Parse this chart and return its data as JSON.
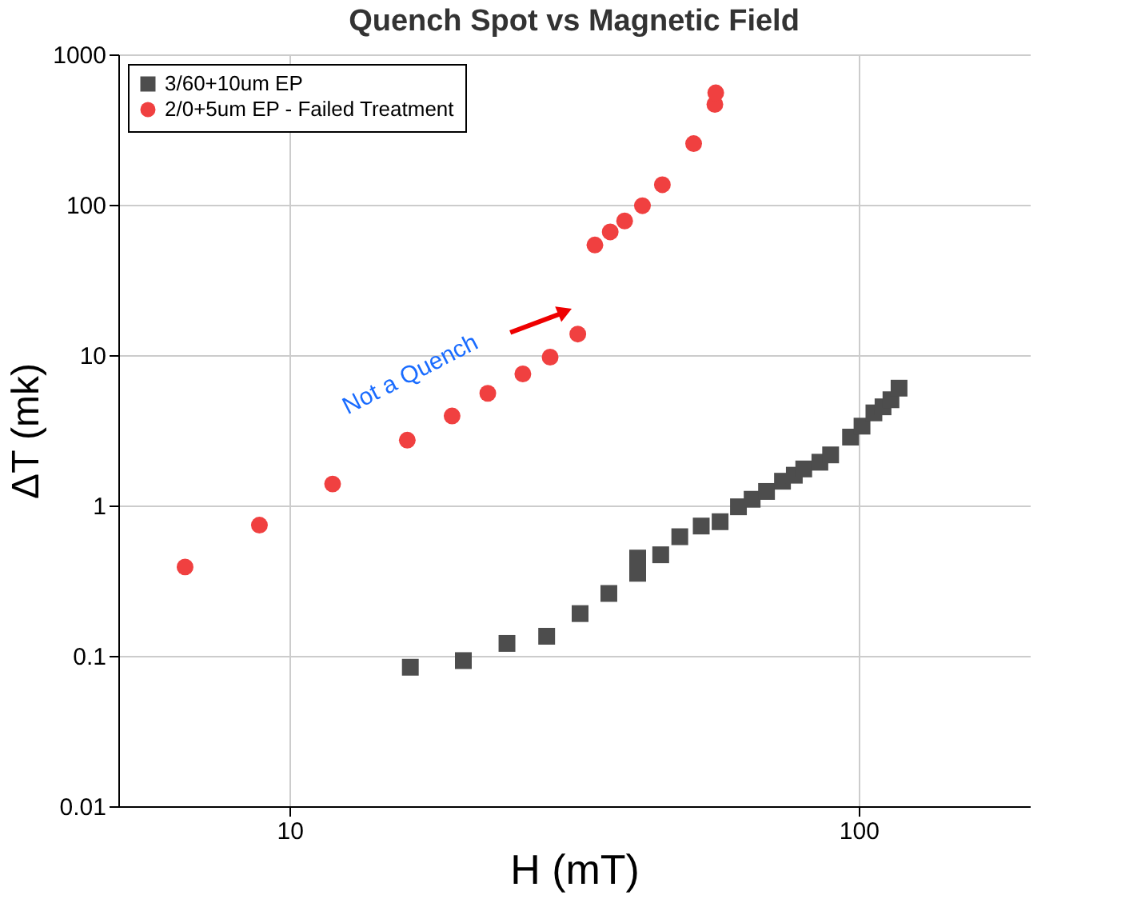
{
  "chart_data": {
    "type": "scatter",
    "title": "Quench Spot vs Magnetic Field",
    "xlabel": "H (mT)",
    "ylabel": "ΔT (mk)",
    "log": "xy",
    "grid": true,
    "legend": "top left",
    "xlim": [
      5,
      200
    ],
    "xticks": [
      10,
      100
    ],
    "ylim": [
      0.01,
      1000
    ],
    "yticks": [
      0.01,
      0.1,
      1,
      10,
      100,
      1000
    ],
    "annotations": [
      "Not a Quench"
    ],
    "series": [
      {
        "name": "3/60+10um EP",
        "color": "#4d4d4d",
        "marker": "square",
        "x": [
          16.3,
          20.2,
          24.1,
          28.3,
          32.4,
          36.4,
          40.9,
          40.9,
          44.9,
          48.5,
          52.9,
          57.1,
          61.5,
          65.0,
          68.9,
          73.5,
          77.1,
          80.1,
          85.5,
          89.3,
          96.8,
          101.4,
          106.4,
          110.4,
          114.0,
          117.8
        ],
        "values": [
          0.084,
          0.093,
          0.121,
          0.135,
          0.191,
          0.26,
          0.447,
          0.354,
          0.47,
          0.62,
          0.73,
          0.78,
          0.98,
          1.1,
          1.24,
          1.45,
          1.59,
          1.75,
          1.94,
          2.17,
          2.85,
          3.37,
          4.13,
          4.53,
          5.05,
          6.03
        ]
      },
      {
        "name": "2/0+5um EP - Failed Treatment",
        "color": "#f04040",
        "marker": "circle",
        "x": [
          6.55,
          8.85,
          11.9,
          16.1,
          19.3,
          22.3,
          25.7,
          28.7,
          32.1,
          34.4,
          36.6,
          38.8,
          41.7,
          45.2,
          51.3,
          55.9,
          56.1
        ],
        "values": [
          0.39,
          0.74,
          1.39,
          2.72,
          3.94,
          5.57,
          7.5,
          9.7,
          13.8,
          54,
          66,
          78,
          98.6,
          136,
          255,
          465,
          555
        ]
      }
    ]
  }
}
